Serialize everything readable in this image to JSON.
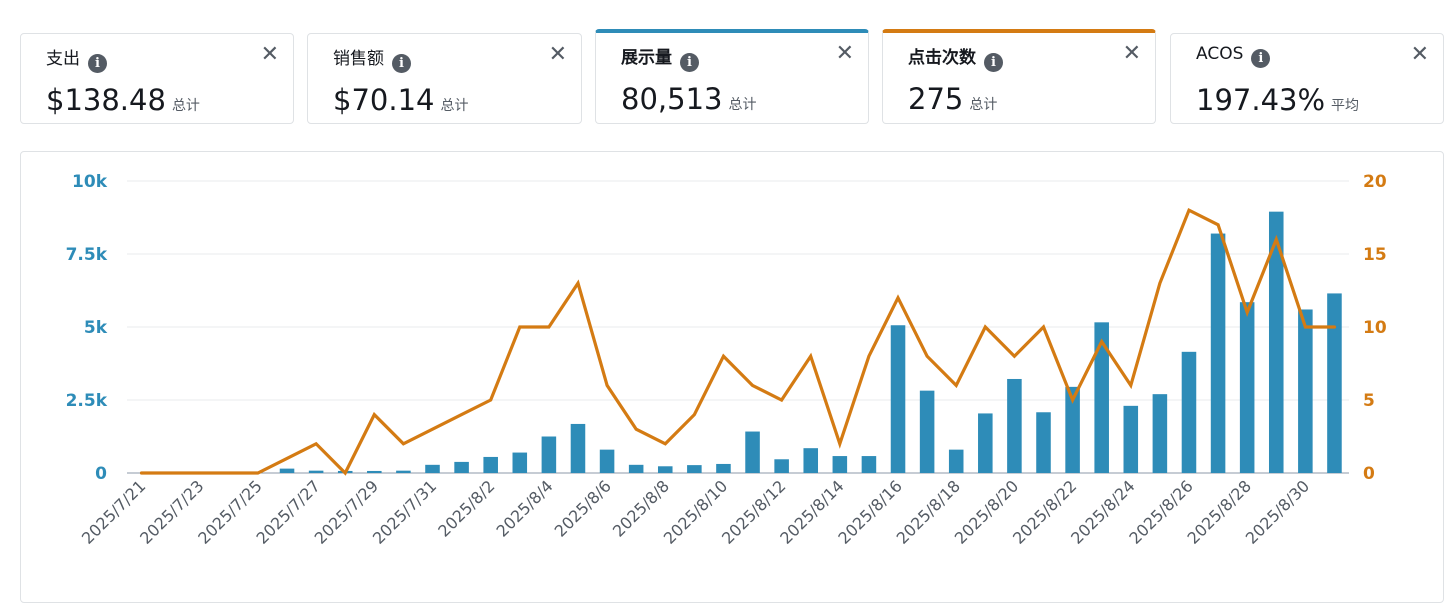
{
  "metric_cards": [
    {
      "label": "支出",
      "value": "$138.48",
      "aggregation": "总计",
      "selected": false,
      "accent": ""
    },
    {
      "label": "销售额",
      "value": "$70.14",
      "aggregation": "总计",
      "selected": false,
      "accent": ""
    },
    {
      "label": "展示量",
      "value": "80,513",
      "aggregation": "总计",
      "selected": true,
      "accent": "#2e8cb8"
    },
    {
      "label": "点击次数",
      "value": "275",
      "aggregation": "总计",
      "selected": true,
      "accent": "#d47b13"
    },
    {
      "label": "ACOS",
      "value": "197.43%",
      "aggregation": "平均",
      "selected": false,
      "accent": ""
    }
  ],
  "icons": {
    "info": "info-icon",
    "close": "close-icon"
  },
  "chart_data": {
    "type": "bar+line",
    "x": [
      "2025/7/21",
      "2025/7/22",
      "2025/7/23",
      "2025/7/24",
      "2025/7/25",
      "2025/7/26",
      "2025/7/27",
      "2025/7/28",
      "2025/7/29",
      "2025/7/30",
      "2025/7/31",
      "2025/8/1",
      "2025/8/2",
      "2025/8/3",
      "2025/8/4",
      "2025/8/5",
      "2025/8/6",
      "2025/8/7",
      "2025/8/8",
      "2025/8/9",
      "2025/8/10",
      "2025/8/11",
      "2025/8/12",
      "2025/8/13",
      "2025/8/14",
      "2025/8/15",
      "2025/8/16",
      "2025/8/17",
      "2025/8/18",
      "2025/8/19",
      "2025/8/20",
      "2025/8/21",
      "2025/8/22",
      "2025/8/23",
      "2025/8/24",
      "2025/8/25",
      "2025/8/26",
      "2025/8/27",
      "2025/8/28",
      "2025/8/29",
      "2025/8/30",
      "2025/8/31"
    ],
    "x_tick_labels": [
      "2025/7/21",
      "2025/7/23",
      "2025/7/25",
      "2025/7/27",
      "2025/7/29",
      "2025/7/31",
      "2025/8/2",
      "2025/8/4",
      "2025/8/6",
      "2025/8/8",
      "2025/8/10",
      "2025/8/12",
      "2025/8/14",
      "2025/8/16",
      "2025/8/18",
      "2025/8/20",
      "2025/8/22",
      "2025/8/24",
      "2025/8/26",
      "2025/8/28",
      "2025/8/30"
    ],
    "series": [
      {
        "metric": "展示量",
        "kind": "bar",
        "axis": "left",
        "color": "#2e8cb8",
        "values": [
          0,
          0,
          0,
          0,
          0,
          150,
          80,
          70,
          70,
          80,
          280,
          380,
          550,
          700,
          1250,
          1680,
          800,
          280,
          230,
          270,
          310,
          1420,
          470,
          850,
          580,
          580,
          5060,
          2820,
          800,
          2040,
          3220,
          2080,
          2950,
          5160,
          2300,
          2700,
          4150,
          8200,
          5850,
          8950,
          5600,
          6150
        ]
      },
      {
        "metric": "点击次数",
        "kind": "line",
        "axis": "right",
        "color": "#d47b13",
        "values": [
          0,
          0,
          0,
          0,
          0,
          1,
          2,
          0,
          4,
          2,
          3,
          4,
          5,
          10,
          10,
          13,
          6,
          3,
          2,
          4,
          8,
          6,
          5,
          8,
          2,
          8,
          12,
          8,
          6,
          10,
          8,
          10,
          5,
          9,
          6,
          13,
          18,
          17,
          11,
          16,
          10,
          10
        ]
      }
    ],
    "y_left": {
      "min": 0,
      "max": 10000,
      "tick_labels": [
        "0",
        "2.5k",
        "5k",
        "7.5k",
        "10k"
      ],
      "ticks": [
        0,
        2500,
        5000,
        7500,
        10000
      ],
      "color": "#2e8cb8"
    },
    "y_right": {
      "min": 0,
      "max": 20,
      "tick_labels": [
        "0",
        "5",
        "10",
        "15",
        "20"
      ],
      "ticks": [
        0,
        5,
        10,
        15,
        20
      ],
      "color": "#d47b13"
    },
    "grid": true
  }
}
